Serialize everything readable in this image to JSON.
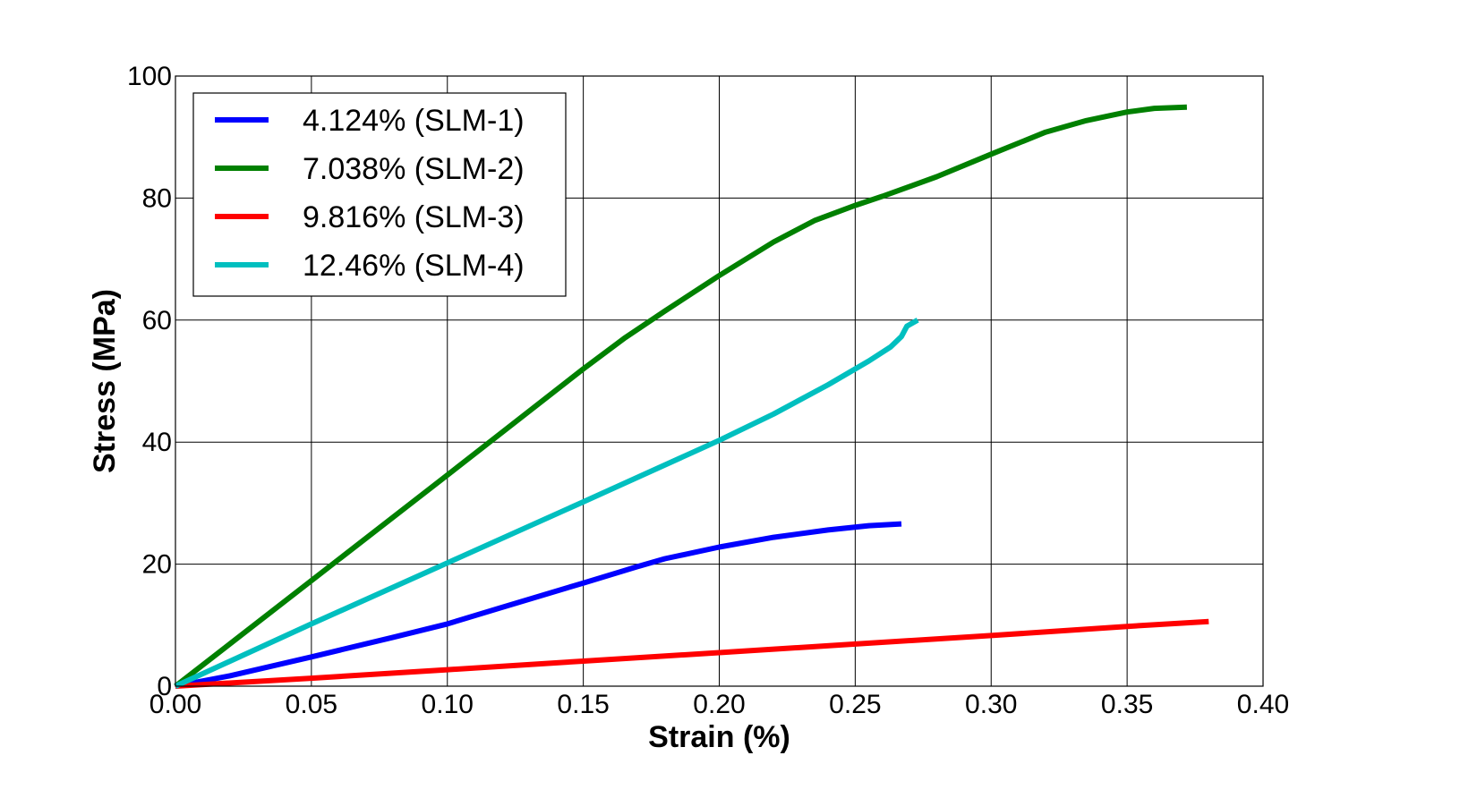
{
  "chart_data": {
    "type": "line",
    "title": "",
    "xlabel": "Strain (%)",
    "ylabel": "Stress (MPa)",
    "xlim": [
      0,
      0.4
    ],
    "ylim": [
      0,
      100
    ],
    "x_ticks": [
      0,
      0.05,
      0.1,
      0.15,
      0.2,
      0.25,
      0.3,
      0.35,
      0.4
    ],
    "x_tick_labels": [
      "0.00",
      "0.05",
      "0.10",
      "0.15",
      "0.20",
      "0.25",
      "0.30",
      "0.35",
      "0.40"
    ],
    "y_ticks": [
      0,
      20,
      40,
      60,
      80,
      100
    ],
    "y_tick_labels": [
      "0",
      "20",
      "40",
      "60",
      "80",
      "100"
    ],
    "grid": true,
    "legend_position": "top-left",
    "series": [
      {
        "name": "4.124% (SLM-1)",
        "color": "#0000ff",
        "points": [
          [
            0,
            0
          ],
          [
            0.02,
            1.7
          ],
          [
            0.05,
            4.8
          ],
          [
            0.08,
            8.0
          ],
          [
            0.1,
            10.2
          ],
          [
            0.12,
            12.9
          ],
          [
            0.15,
            16.9
          ],
          [
            0.17,
            19.6
          ],
          [
            0.18,
            20.9
          ],
          [
            0.2,
            22.8
          ],
          [
            0.22,
            24.4
          ],
          [
            0.24,
            25.6
          ],
          [
            0.255,
            26.3
          ],
          [
            0.267,
            26.6
          ]
        ]
      },
      {
        "name": "7.038% (SLM-2)",
        "color": "#008000",
        "points": [
          [
            0,
            0
          ],
          [
            0.05,
            17.3
          ],
          [
            0.1,
            34.6
          ],
          [
            0.15,
            52
          ],
          [
            0.165,
            57
          ],
          [
            0.18,
            61.5
          ],
          [
            0.2,
            67.3
          ],
          [
            0.22,
            72.8
          ],
          [
            0.235,
            76.3
          ],
          [
            0.25,
            78.8
          ],
          [
            0.26,
            80.3
          ],
          [
            0.28,
            83.5
          ],
          [
            0.3,
            87.2
          ],
          [
            0.32,
            90.8
          ],
          [
            0.335,
            92.7
          ],
          [
            0.35,
            94.1
          ],
          [
            0.36,
            94.7
          ],
          [
            0.372,
            94.9
          ]
        ]
      },
      {
        "name": "9.816% (SLM-3)",
        "color": "#ff0000",
        "points": [
          [
            0,
            0
          ],
          [
            0.05,
            1.3
          ],
          [
            0.1,
            2.7
          ],
          [
            0.15,
            4.1
          ],
          [
            0.2,
            5.5
          ],
          [
            0.25,
            6.9
          ],
          [
            0.3,
            8.3
          ],
          [
            0.35,
            9.8
          ],
          [
            0.38,
            10.6
          ]
        ]
      },
      {
        "name": "12.46% (SLM-4)",
        "color": "#00bfbf",
        "points": [
          [
            0,
            0
          ],
          [
            0.05,
            10.2
          ],
          [
            0.1,
            20.2
          ],
          [
            0.15,
            30.2
          ],
          [
            0.2,
            40.3
          ],
          [
            0.22,
            44.6
          ],
          [
            0.24,
            49.4
          ],
          [
            0.255,
            53.3
          ],
          [
            0.263,
            55.6
          ],
          [
            0.267,
            57.3
          ],
          [
            0.269,
            59
          ],
          [
            0.273,
            60
          ]
        ]
      }
    ]
  }
}
